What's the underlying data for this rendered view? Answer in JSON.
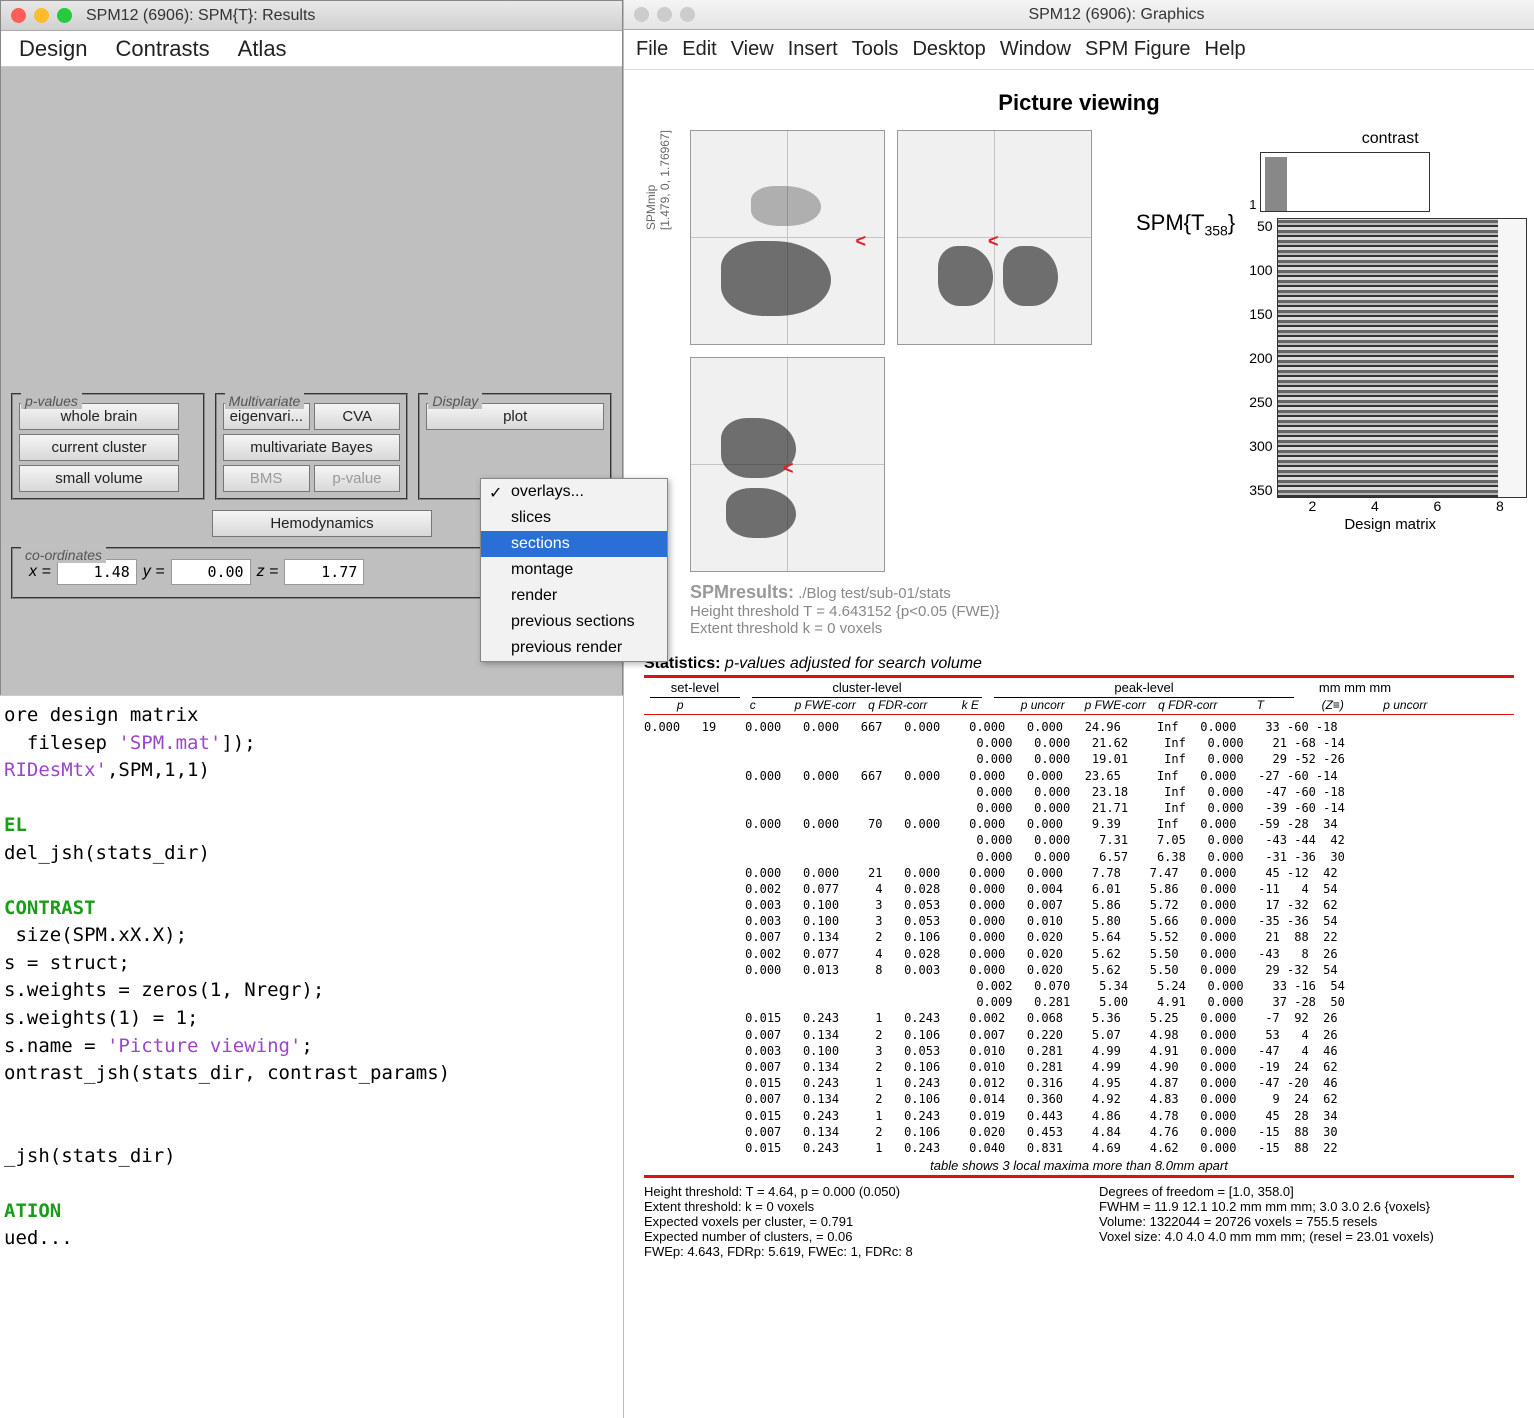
{
  "results_window": {
    "title": "SPM12 (6906): SPM{T}: Results",
    "menus": [
      "Design",
      "Contrasts",
      "Atlas"
    ],
    "pvalues": {
      "legend": "p-values",
      "buttons": [
        "whole brain",
        "current cluster",
        "small volume"
      ]
    },
    "multivariate": {
      "legend": "Multivariate",
      "row1": [
        "eigenvari...",
        "CVA"
      ],
      "row2": "multivariate Bayes",
      "row3": [
        "BMS",
        "p-value"
      ]
    },
    "display": {
      "legend": "Display",
      "plot": "plot"
    },
    "hemo": "Hemodynamics",
    "coords": {
      "legend": "co-ordinates",
      "x_label": "x =",
      "x": "1.48",
      "y_label": "y =",
      "y": "0.00",
      "z_label": "z =",
      "z": "1.77"
    },
    "popup": {
      "items": [
        "overlays...",
        "slices",
        "sections",
        "montage",
        "render",
        "previous sections",
        "previous render"
      ],
      "checked": 0,
      "selected": 2
    }
  },
  "code": {
    "l1a": "ore design matrix",
    "l1_kw": "",
    "l2a": "  filesep ",
    "l2s": "'SPM.mat'",
    "l2b": "]);",
    "l3a": "RIDesMtx'",
    "l3b": ",SPM,1,1)",
    "hdr1": "EL",
    "l4a": "del_jsh(stats_dir)",
    "hdr2": "CONTRAST",
    "l5": " size(SPM.xX.X);",
    "l6": "s = struct;",
    "l7": "s.weights = zeros(1, Nregr);",
    "l8": "s.weights(1) = 1;",
    "l9a": "s.name = ",
    "l9s": "'Picture viewing'",
    "l9b": ";",
    "l10": "ontrast_jsh(stats_dir, contrast_params)",
    "l11": "_jsh(stats_dir)",
    "hdr3": "ATION",
    "l12": "ued..."
  },
  "graphics": {
    "title": "SPM12 (6906): Graphics",
    "menus": [
      "File",
      "Edit",
      "View",
      "Insert",
      "Tools",
      "Desktop",
      "Window",
      "SPM Figure",
      "Help"
    ],
    "fig_title": "Picture viewing",
    "mip_label": "SPMmip",
    "mip_coords": "[1.479, 0, 1.76967]",
    "spm_eq_pre": "SPM{T",
    "spm_eq_sub": "358",
    "spm_eq_post": "}",
    "results_lead": "SPMresults:",
    "results_path": "./Blog test/sub-01/stats",
    "height_thr": "Height threshold T = 4.643152  {p<0.05 (FWE)}",
    "extent_thr": "Extent threshold k = 0 voxels",
    "contrast_label": "contrast",
    "contrast_one": "1",
    "dm_ylabels": [
      "50",
      "100",
      "150",
      "200",
      "250",
      "300",
      "350"
    ],
    "dm_xlabels": [
      "2",
      "4",
      "6",
      "8"
    ],
    "dm_title": "Design matrix",
    "stats_head_b": "Statistics:",
    "stats_head_i": "p-values adjusted for search volume",
    "grp_set": "set-level",
    "grp_cluster": "cluster-level",
    "grp_peak": "peak-level",
    "grp_mm": "mm mm mm",
    "sub_labels": [
      "p",
      "c",
      "p FWE-corr",
      "q FDR-corr",
      "k E",
      "p uncorr",
      "p FWE-corr",
      "q FDR-corr",
      "T",
      "(Z≡)",
      "p uncorr",
      ""
    ],
    "table_rows": [
      "0.000   19    0.000   0.000   667   0.000    0.000   0.000   24.96     Inf   0.000    33 -60 -18",
      "                                              0.000   0.000   21.62     Inf   0.000    21 -68 -14",
      "                                              0.000   0.000   19.01     Inf   0.000    29 -52 -26",
      "              0.000   0.000   667   0.000    0.000   0.000   23.65     Inf   0.000   -27 -60 -14",
      "                                              0.000   0.000   23.18     Inf   0.000   -47 -60 -18",
      "                                              0.000   0.000   21.71     Inf   0.000   -39 -60 -14",
      "              0.000   0.000    70   0.000    0.000   0.000    9.39     Inf   0.000   -59 -28  34",
      "                                              0.000   0.000    7.31    7.05   0.000   -43 -44  42",
      "                                              0.000   0.000    6.57    6.38   0.000   -31 -36  30",
      "              0.000   0.000    21   0.000    0.000   0.000    7.78    7.47   0.000    45 -12  42",
      "              0.002   0.077     4   0.028    0.000   0.004    6.01    5.86   0.000   -11   4  54",
      "              0.003   0.100     3   0.053    0.000   0.007    5.86    5.72   0.000    17 -32  62",
      "              0.003   0.100     3   0.053    0.000   0.010    5.80    5.66   0.000   -35 -36  54",
      "              0.007   0.134     2   0.106    0.000   0.020    5.64    5.52   0.000    21  88  22",
      "              0.002   0.077     4   0.028    0.000   0.020    5.62    5.50   0.000   -43   8  26",
      "              0.000   0.013     8   0.003    0.000   0.020    5.62    5.50   0.000    29 -32  54",
      "                                              0.002   0.070    5.34    5.24   0.000    33 -16  54",
      "                                              0.009   0.281    5.00    4.91   0.000    37 -28  50",
      "              0.015   0.243     1   0.243    0.002   0.068    5.36    5.25   0.000    -7  92  26",
      "              0.007   0.134     2   0.106    0.007   0.220    5.07    4.98   0.000    53   4  26",
      "              0.003   0.100     3   0.053    0.010   0.281    4.99    4.91   0.000   -47   4  46",
      "              0.007   0.134     2   0.106    0.010   0.281    4.99    4.90   0.000   -19  24  62",
      "              0.015   0.243     1   0.243    0.012   0.316    4.95    4.87   0.000   -47 -20  46",
      "              0.007   0.134     2   0.106    0.014   0.360    4.92    4.83   0.000     9  24  62",
      "              0.015   0.243     1   0.243    0.019   0.443    4.86    4.78   0.000    45  28  34",
      "              0.007   0.134     2   0.106    0.020   0.453    4.84    4.76   0.000   -15  88  30",
      "              0.015   0.243     1   0.243    0.040   0.831    4.69    4.62   0.000   -15  88  22"
    ],
    "table_note": "table shows 3 local maxima more than 8.0mm apart",
    "footer_left": [
      "Height threshold: T = 4.64, p = 0.000 (0.050)",
      "Extent threshold: k = 0 voxels",
      "Expected voxels per cluster, <k> = 0.791",
      "Expected number of clusters, <c> = 0.06",
      "FWEp: 4.643, FDRp: 5.619, FWEc: 1, FDRc: 8"
    ],
    "footer_right": [
      "Degrees of freedom = [1.0, 358.0]",
      "FWHM = 11.9 12.1 10.2 mm mm mm; 3.0 3.0 2.6 {voxels}",
      "Volume: 1322044 = 20726 voxels = 755.5 resels",
      "Voxel size: 4.0 4.0 4.0 mm mm mm; (resel = 23.01 voxels)"
    ]
  }
}
